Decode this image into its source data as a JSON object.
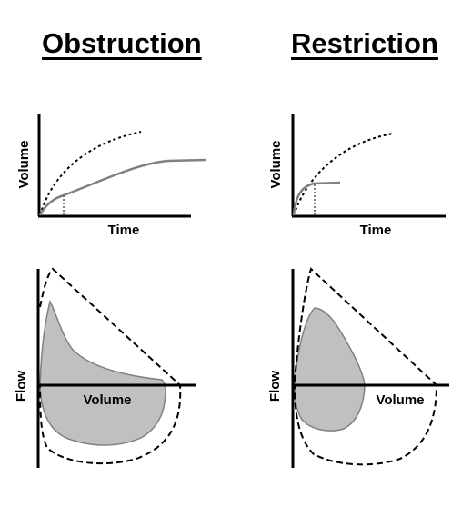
{
  "titles": {
    "left": "Obstruction",
    "right": "Restriction"
  },
  "labels": {
    "volume": "Volume",
    "time": "Time",
    "flow": "Flow"
  },
  "colors": {
    "line": "#000000",
    "curve_fill": "#c0c0c0",
    "curve_stroke": "#808080"
  }
}
